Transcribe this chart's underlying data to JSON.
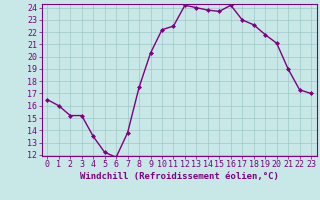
{
  "x": [
    0,
    1,
    2,
    3,
    4,
    5,
    6,
    7,
    8,
    9,
    10,
    11,
    12,
    13,
    14,
    15,
    16,
    17,
    18,
    19,
    20,
    21,
    22,
    23
  ],
  "y": [
    16.5,
    16.0,
    15.2,
    15.2,
    13.5,
    12.2,
    11.8,
    13.8,
    17.5,
    20.3,
    22.2,
    22.5,
    24.2,
    24.0,
    23.8,
    23.7,
    24.2,
    23.0,
    22.6,
    21.8,
    21.1,
    19.0,
    17.3,
    17.0
  ],
  "line_color": "#800080",
  "marker": "D",
  "marker_size": 2,
  "bg_color": "#c8e8e8",
  "grid_color": "#a0c8c8",
  "xlabel": "Windchill (Refroidissement éolien,°C)",
  "ylim": [
    12,
    24
  ],
  "xlim": [
    -0.5,
    23.5
  ],
  "yticks": [
    12,
    13,
    14,
    15,
    16,
    17,
    18,
    19,
    20,
    21,
    22,
    23,
    24
  ],
  "xticks": [
    0,
    1,
    2,
    3,
    4,
    5,
    6,
    7,
    8,
    9,
    10,
    11,
    12,
    13,
    14,
    15,
    16,
    17,
    18,
    19,
    20,
    21,
    22,
    23
  ],
  "line_width": 1.0,
  "label_fontsize": 6.5,
  "tick_fontsize": 6
}
